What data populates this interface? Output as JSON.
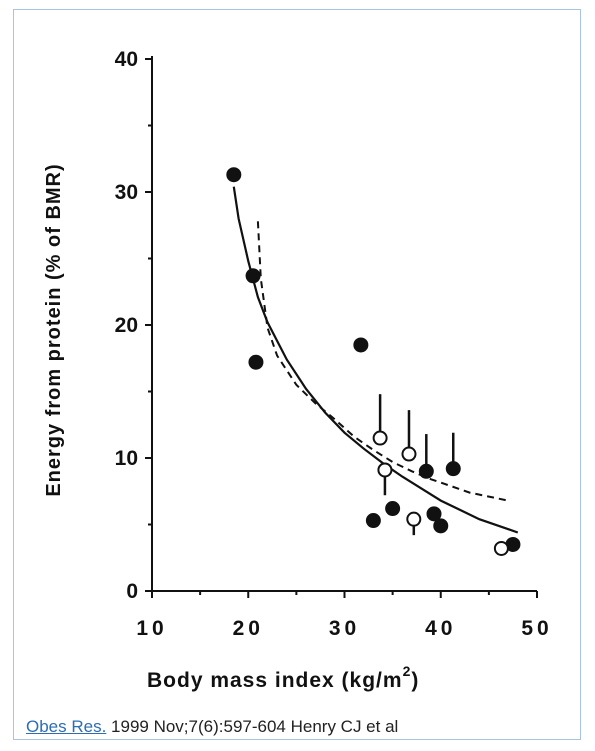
{
  "chart_data": {
    "type": "scatter",
    "title": "",
    "xlabel": "Body mass index (kg/m",
    "xlabel_superscript": "2",
    "xlabel_close": ")",
    "ylabel": "Energy from protein (% of BMR)",
    "xlim": [
      10,
      50
    ],
    "ylim": [
      0,
      40
    ],
    "x_ticks": [
      "10",
      "20",
      "30",
      "40",
      "50"
    ],
    "x_tick_values": [
      10,
      20,
      30,
      40,
      50
    ],
    "y_ticks": [
      "0",
      "10",
      "20",
      "30",
      "40"
    ],
    "y_tick_values": [
      0,
      10,
      20,
      30,
      40
    ],
    "grid": false,
    "series": [
      {
        "marker": "filled",
        "points": [
          {
            "x": 18.5,
            "y": 31.3
          },
          {
            "x": 20.5,
            "y": 23.7
          },
          {
            "x": 20.8,
            "y": 17.2
          },
          {
            "x": 31.7,
            "y": 18.5
          },
          {
            "x": 33.0,
            "y": 5.3
          },
          {
            "x": 35.0,
            "y": 6.2
          },
          {
            "x": 38.5,
            "y": 9.0,
            "err_upper": 11.8
          },
          {
            "x": 39.3,
            "y": 5.8
          },
          {
            "x": 40.0,
            "y": 4.9
          },
          {
            "x": 41.3,
            "y": 9.2,
            "err_upper": 11.9
          },
          {
            "x": 47.5,
            "y": 3.5
          }
        ]
      },
      {
        "marker": "open",
        "points": [
          {
            "x": 33.7,
            "y": 11.5,
            "err_upper": 14.8
          },
          {
            "x": 34.2,
            "y": 9.1,
            "err_lower": 7.2
          },
          {
            "x": 36.7,
            "y": 10.3,
            "err_upper": 13.6
          },
          {
            "x": 37.2,
            "y": 5.4,
            "err_lower": 4.2
          },
          {
            "x": 46.3,
            "y": 3.2
          }
        ]
      }
    ],
    "fit_solid": [
      [
        18.5,
        30.4
      ],
      [
        19,
        28.0
      ],
      [
        20,
        24.8
      ],
      [
        21,
        22.1
      ],
      [
        22,
        20.2
      ],
      [
        24,
        17.4
      ],
      [
        26,
        15.2
      ],
      [
        28,
        13.4
      ],
      [
        30,
        11.9
      ],
      [
        32,
        10.7
      ],
      [
        34,
        9.6
      ],
      [
        36,
        8.6
      ],
      [
        38,
        7.7
      ],
      [
        40,
        6.8
      ],
      [
        42,
        6.1
      ],
      [
        44,
        5.4
      ],
      [
        46,
        4.9
      ],
      [
        48,
        4.4
      ]
    ],
    "fit_dashed": [
      [
        21.0,
        27.8
      ],
      [
        21.3,
        23.5
      ],
      [
        22,
        19.8
      ],
      [
        23,
        17.7
      ],
      [
        25,
        15.5
      ],
      [
        27,
        14.1
      ],
      [
        29,
        12.9
      ],
      [
        31,
        11.6
      ],
      [
        33,
        10.6
      ],
      [
        35,
        9.7
      ],
      [
        37,
        9.0
      ],
      [
        39,
        8.4
      ],
      [
        41,
        7.9
      ],
      [
        43,
        7.4
      ],
      [
        45,
        7.1
      ],
      [
        47,
        6.8
      ]
    ]
  },
  "caption": {
    "link_text": "Obes Res.",
    "text": " 1999 Nov;7(6):597-604 Henry CJ et al"
  }
}
